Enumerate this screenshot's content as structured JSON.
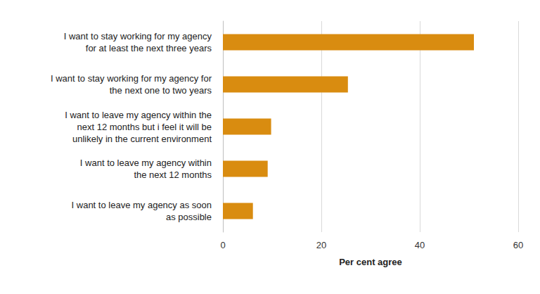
{
  "chart_data": {
    "type": "bar",
    "orientation": "horizontal",
    "categories": [
      "I want to stay working for my agency\nfor at least the next three years",
      "I want to stay working for my agency for\nthe next one to two years",
      "I want to leave my agency within the\nnext 12 months but i feel it will be\nunlikely in the current environment",
      "I want to leave my agency within\nthe next 12 months",
      "I want to leave my agency as soon\nas possible"
    ],
    "values": [
      51,
      25.4,
      9.8,
      9.1,
      6.1
    ],
    "color": "#d98c10",
    "x_label": "Per cent agree",
    "xlim": [
      0,
      60
    ],
    "xticks": [
      0,
      20,
      40,
      60
    ],
    "grid": true
  }
}
